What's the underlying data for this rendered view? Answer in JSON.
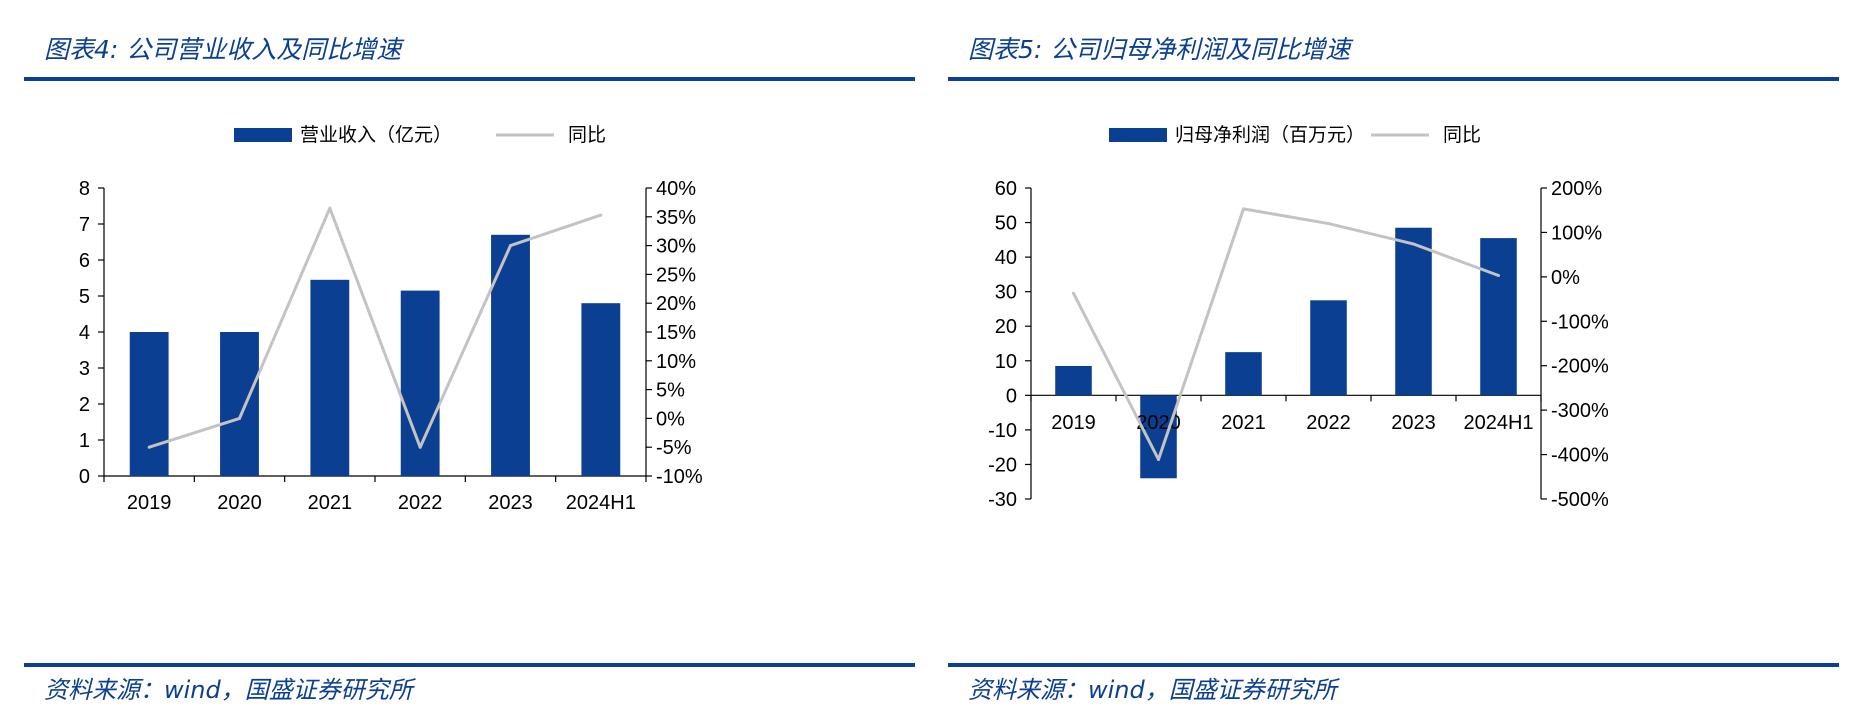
{
  "colors": {
    "bar": "#0b3f91",
    "line": "#c3c3c3",
    "accent": "#0b3f91"
  },
  "left": {
    "title": "图表4:  公司营业收入及同比增速",
    "source": "资料来源：wind，国盛证券研究所"
  },
  "right": {
    "title": "图表5:  公司归母净利润及同比增速",
    "source": "资料来源：wind，国盛证券研究所"
  },
  "chart_data": [
    {
      "type": "bar",
      "categories": [
        "2019",
        "2020",
        "2021",
        "2022",
        "2023",
        "2024H1"
      ],
      "series": [
        {
          "name": "营业收入（亿元）",
          "type": "bar",
          "axis": "left",
          "values": [
            4.0,
            4.0,
            5.45,
            5.15,
            6.7,
            4.8
          ]
        },
        {
          "name": "同比",
          "type": "line",
          "axis": "right",
          "values": [
            -5,
            0,
            36.5,
            -5,
            30,
            35.3
          ]
        }
      ],
      "left_axis": {
        "min": 0,
        "max": 8,
        "step": 1,
        "ticks": [
          "0",
          "1",
          "2",
          "3",
          "4",
          "5",
          "6",
          "7",
          "8"
        ]
      },
      "right_axis": {
        "min": -10,
        "max": 40,
        "step": 5,
        "ticks": [
          "-10%",
          "-5%",
          "0%",
          "5%",
          "10%",
          "15%",
          "20%",
          "25%",
          "30%",
          "35%",
          "40%"
        ]
      },
      "legend": "top-center",
      "grid": false
    },
    {
      "type": "bar",
      "categories": [
        "2019",
        "2020",
        "2021",
        "2022",
        "2023",
        "2024H1"
      ],
      "series": [
        {
          "name": "归母净利润（百万元）",
          "type": "bar",
          "axis": "left",
          "values": [
            8.5,
            -24,
            12.5,
            27.5,
            48.5,
            45.5
          ]
        },
        {
          "name": "同比",
          "type": "line",
          "axis": "right",
          "values": [
            -37,
            -411,
            153,
            120,
            74,
            3
          ]
        }
      ],
      "left_axis": {
        "min": -30,
        "max": 60,
        "step": 10,
        "ticks": [
          "-30",
          "-20",
          "-10",
          "0",
          "10",
          "20",
          "30",
          "40",
          "50",
          "60"
        ]
      },
      "right_axis": {
        "min": -500,
        "max": 200,
        "step": 100,
        "ticks": [
          "-500%",
          "-400%",
          "-300%",
          "-200%",
          "-100%",
          "0%",
          "100%",
          "200%"
        ]
      },
      "legend": "top-center",
      "grid": false
    }
  ]
}
